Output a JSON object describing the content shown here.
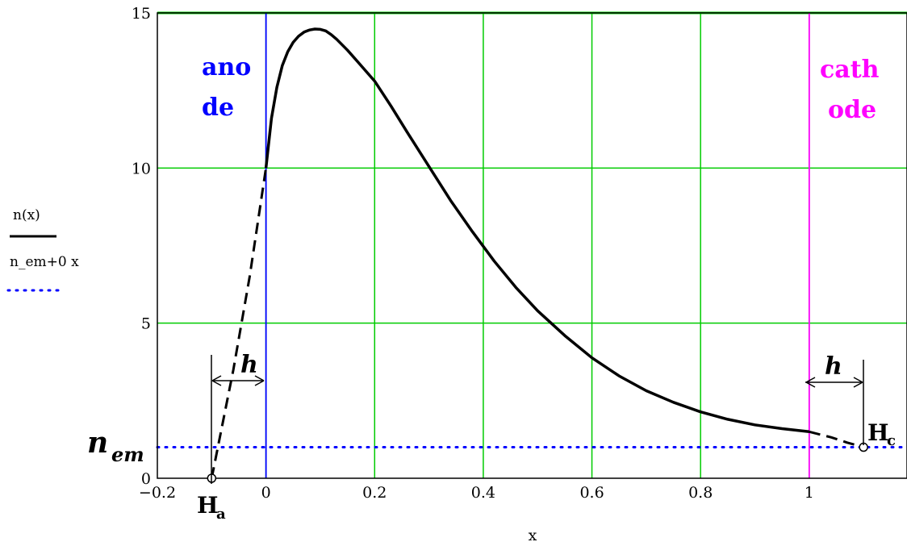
{
  "chart_data": {
    "type": "line",
    "xlabel": "x",
    "ylabel": "",
    "xlim": [
      -0.2,
      1.18
    ],
    "ylim": [
      0,
      15
    ],
    "x_ticks": [
      -0.2,
      0,
      0.2,
      0.4,
      0.6,
      0.8,
      1
    ],
    "x_tick_labels": [
      "−0.2",
      "0",
      "0.2",
      "0.4",
      "0.6",
      "0.8",
      "1"
    ],
    "y_ticks": [
      0,
      5,
      10,
      15
    ],
    "y_tick_labels": [
      "0",
      "5",
      "10",
      "15"
    ],
    "grid": true,
    "legend": {
      "placement": "left",
      "entries": [
        {
          "label": "n(x)",
          "style": "solid",
          "color": "#000000"
        },
        {
          "label": "n_em+0 x",
          "style": "dotted",
          "color": "#0000ff"
        }
      ]
    },
    "series": [
      {
        "name": "n(x)",
        "color": "#000000",
        "style": "solid",
        "x": [
          0,
          0.01,
          0.02,
          0.03,
          0.04,
          0.05,
          0.06,
          0.07,
          0.08,
          0.09,
          0.1,
          0.11,
          0.12,
          0.13,
          0.15,
          0.17,
          0.2,
          0.23,
          0.26,
          0.3,
          0.34,
          0.38,
          0.42,
          0.46,
          0.5,
          0.55,
          0.6,
          0.65,
          0.7,
          0.75,
          0.8,
          0.85,
          0.9,
          0.95,
          1.0
        ],
        "y": [
          10.0,
          11.6,
          12.6,
          13.3,
          13.75,
          14.05,
          14.25,
          14.38,
          14.45,
          14.48,
          14.47,
          14.42,
          14.3,
          14.15,
          13.8,
          13.4,
          12.8,
          12.0,
          11.15,
          10.05,
          8.95,
          7.95,
          7.0,
          6.15,
          5.4,
          4.6,
          3.88,
          3.3,
          2.82,
          2.45,
          2.14,
          1.9,
          1.72,
          1.6,
          1.5
        ]
      },
      {
        "name": "",
        "color": "#000000",
        "style": "dashed",
        "x": [
          -0.1,
          -0.06,
          -0.03,
          0
        ],
        "y": [
          0,
          3.5,
          6.5,
          10.0
        ]
      },
      {
        "name": "",
        "color": "#000000",
        "style": "dashed",
        "x": [
          1.0,
          1.04,
          1.07,
          1.1
        ],
        "y": [
          1.5,
          1.32,
          1.15,
          1.0
        ]
      },
      {
        "name": "n_em+0 x",
        "color": "#0000ff",
        "style": "dotted",
        "x": [
          -0.2,
          1.18
        ],
        "y": [
          1.0,
          1.0
        ]
      }
    ],
    "vertical_lines": [
      {
        "x": 0,
        "color": "#0000ff"
      },
      {
        "x": 1,
        "color": "#ff00ff"
      }
    ],
    "annotations": {
      "anode_line1": "ano",
      "anode_line2": "de",
      "anode_color": "#0000ff",
      "cathode_line1": "cath",
      "cathode_line2": "ode",
      "cathode_color": "#ff00ff",
      "h_left": "h",
      "h_right": "h",
      "n_em_main": "n",
      "n_em_sub": "em",
      "Ha_main": "H",
      "Ha_sub": "a",
      "Hc_main": "H",
      "Hc_sub": "c"
    },
    "markers": [
      {
        "x": -0.1,
        "y": 0
      },
      {
        "x": 1.1,
        "y": 1.0
      }
    ]
  },
  "colors": {
    "grid": "#00cc00",
    "frame": "#000000",
    "curve": "#000000",
    "n_em_line": "#0000ff"
  }
}
